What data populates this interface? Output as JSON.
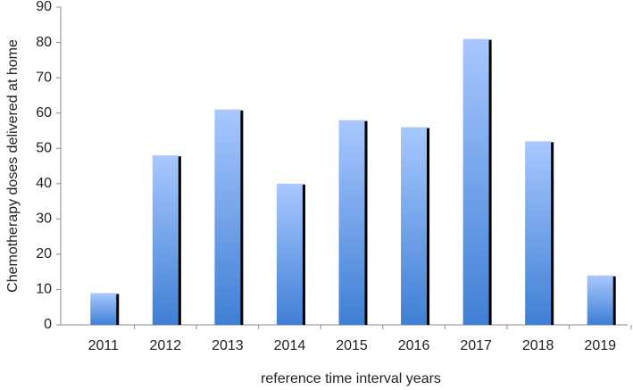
{
  "chart_data": {
    "type": "bar",
    "x_label": "reference time interval years",
    "y_label": "Chemotherapy doses delivered at home",
    "categories": [
      "2011",
      "2012",
      "2013",
      "2014",
      "2015",
      "2016",
      "2017",
      "2018",
      "2019"
    ],
    "values": [
      9,
      48,
      61,
      40,
      58,
      56,
      81,
      52,
      14
    ],
    "color": "#3f7fd4",
    "ylim": [
      0,
      90
    ],
    "yticks": [
      0,
      10,
      20,
      30,
      40,
      50,
      60,
      70,
      80,
      90
    ],
    "grid": false
  }
}
